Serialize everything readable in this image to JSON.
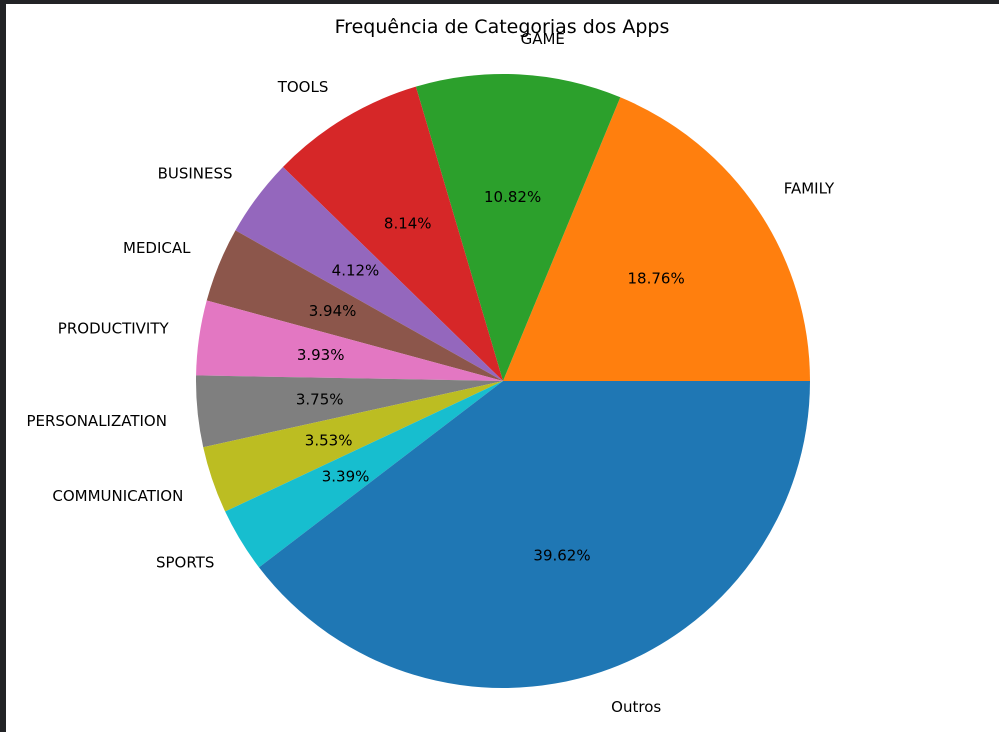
{
  "chart_data": {
    "type": "pie",
    "title": "Frequência de Categorias dos Apps",
    "categories": [
      "FAMILY",
      "GAME",
      "TOOLS",
      "BUSINESS",
      "MEDICAL",
      "PRODUCTIVITY",
      "PERSONALIZATION",
      "COMMUNICATION",
      "SPORTS",
      "Outros"
    ],
    "values": [
      18.76,
      10.82,
      8.14,
      4.12,
      3.94,
      3.93,
      3.75,
      3.53,
      3.39,
      39.62
    ],
    "value_labels": [
      "18.76%",
      "10.82%",
      "8.14%",
      "4.12%",
      "3.94%",
      "3.93%",
      "3.75%",
      "3.53%",
      "3.39%",
      "39.62%"
    ],
    "colors": [
      "#ff7f0e",
      "#2ca02c",
      "#d62728",
      "#9467bd",
      "#8c564b",
      "#e377c2",
      "#7f7f7f",
      "#bcbd22",
      "#17becf",
      "#1f77b4"
    ],
    "legend": "none",
    "grid": false
  }
}
